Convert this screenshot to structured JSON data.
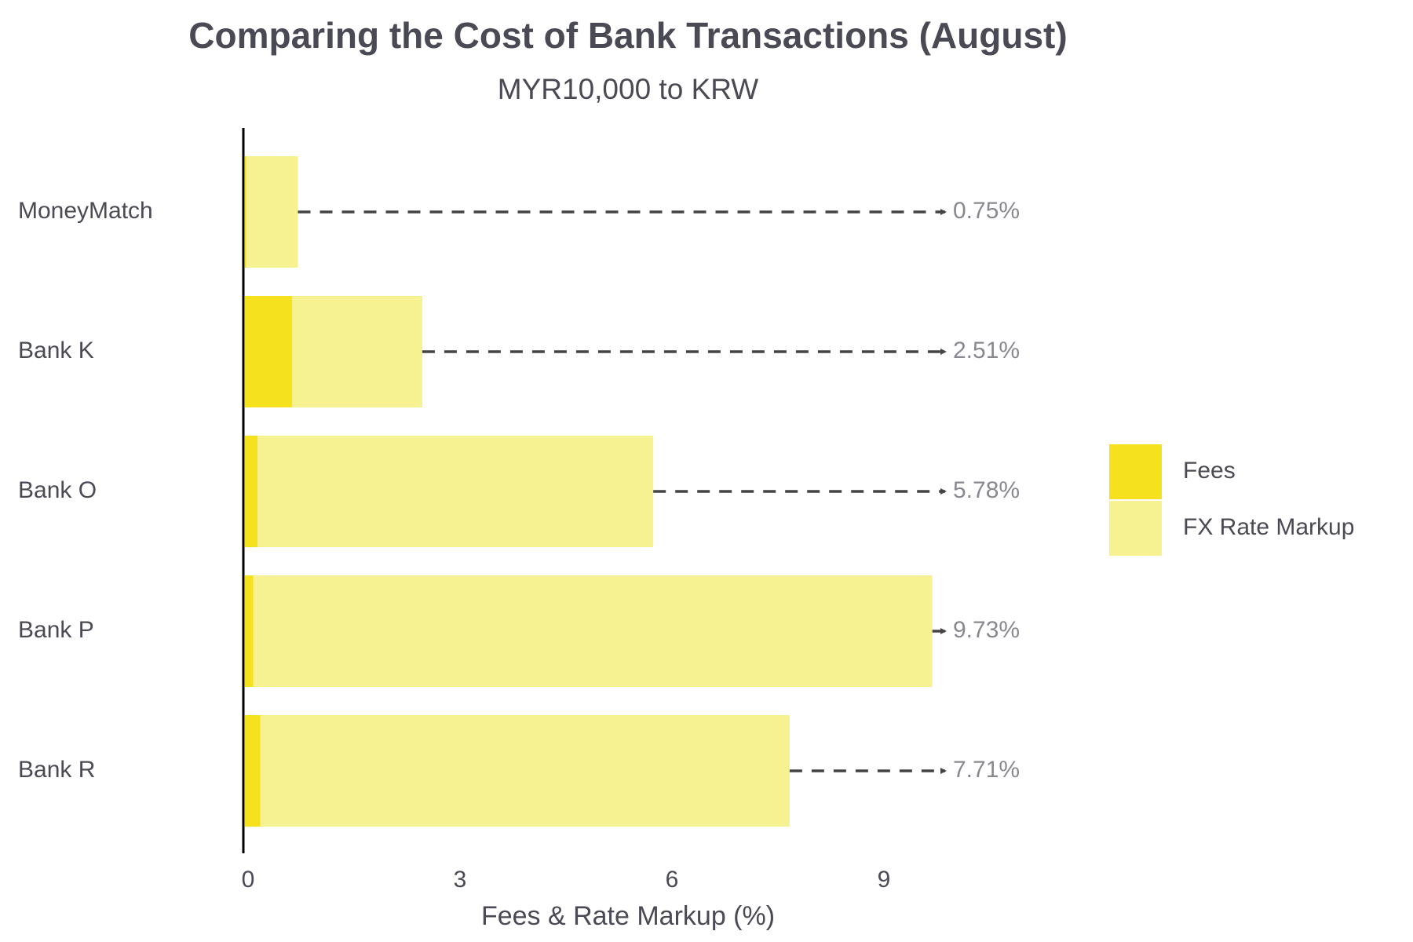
{
  "chart_data": {
    "type": "stacked-barh",
    "title": "Comparing the Cost of Bank Transactions (August)",
    "subtitle": "MYR10,000 to KRW",
    "x_label": "Fees & Rate Markup (%)",
    "categories": [
      "MoneyMatch",
      "Bank K",
      "Bank O",
      "Bank P",
      "Bank R"
    ],
    "series": [
      {
        "name": "Fees",
        "color": "#f5e11e",
        "values": [
          0.02,
          0.67,
          0.18,
          0.12,
          0.22
        ]
      },
      {
        "name": "FX Rate Markup",
        "color": "#f6f291",
        "values": [
          0.73,
          1.84,
          5.6,
          9.61,
          7.49
        ]
      }
    ],
    "totals": {
      "values": [
        0.75,
        2.51,
        5.78,
        9.73,
        7.71
      ],
      "value_labels": [
        "0.75%",
        "2.51%",
        "5.78%",
        "9.73%",
        "7.71%"
      ],
      "color": "#888890"
    },
    "xlim": [
      0,
      10
    ],
    "xticks": [
      0,
      3,
      6,
      9
    ],
    "grid": false,
    "legend": "right"
  }
}
